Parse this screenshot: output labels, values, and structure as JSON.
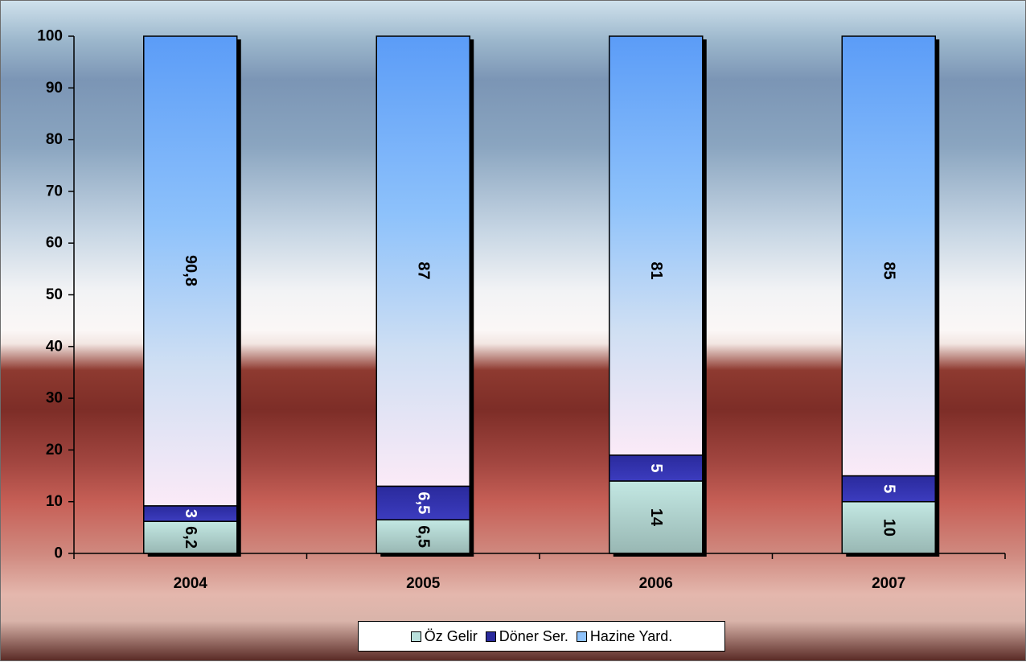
{
  "chart_data": {
    "type": "bar",
    "stacked": true,
    "title": "",
    "xlabel": "",
    "ylabel": "",
    "ylim": [
      0,
      100
    ],
    "yticks": [
      0,
      10,
      20,
      30,
      40,
      50,
      60,
      70,
      80,
      90,
      100
    ],
    "categories": [
      "2004",
      "2005",
      "2006",
      "2007"
    ],
    "series": [
      {
        "name": "Öz Gelir",
        "values": [
          6.2,
          6.5,
          14,
          10
        ],
        "labels": [
          "6,2",
          "6,5",
          "14",
          "10"
        ],
        "color": "#b9e0dc"
      },
      {
        "name": "Döner Ser.",
        "values": [
          3,
          6.5,
          5,
          5
        ],
        "labels": [
          "3",
          "6,5",
          "5",
          "5"
        ],
        "color": "#2a2a9c"
      },
      {
        "name": "Hazine Yard.",
        "values": [
          90.8,
          87,
          81,
          85
        ],
        "labels": [
          "90,8",
          "87",
          "81",
          "85"
        ],
        "color": "#6aa8f5"
      }
    ],
    "legend_position": "bottom",
    "grid": false
  }
}
